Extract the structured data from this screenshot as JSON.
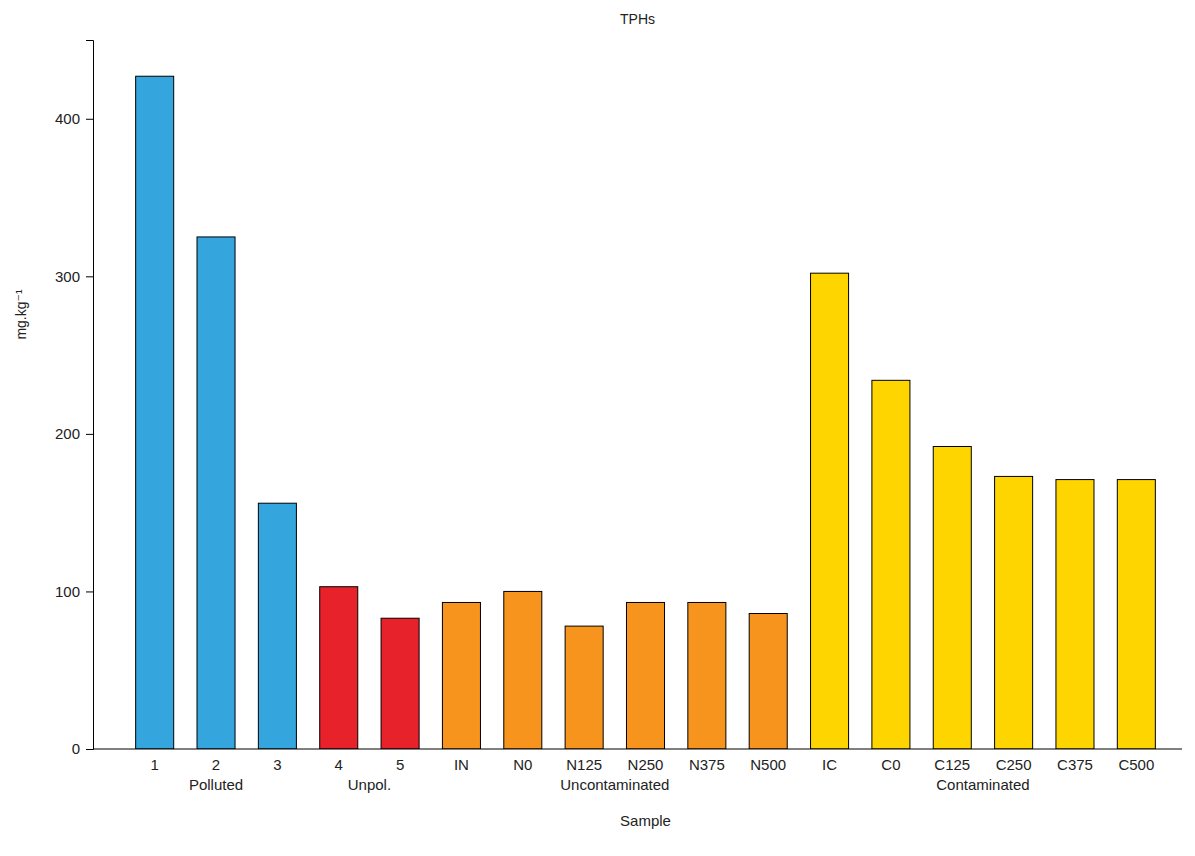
{
  "chart_data": {
    "type": "bar",
    "title": "TPHs",
    "x_label": "Sample",
    "y_label": "mg.kg⁻¹",
    "categories": [
      "1",
      "2",
      "3",
      "4",
      "5",
      "IN",
      "N0",
      "N125",
      "N250",
      "N375",
      "N500",
      "IC",
      "C0",
      "C125",
      "C250",
      "C375",
      "C500"
    ],
    "values": [
      427,
      325,
      156,
      103,
      83,
      93,
      100,
      78,
      93,
      93,
      86,
      302,
      234,
      192,
      173,
      171,
      171
    ],
    "colors": [
      "#35a5dd",
      "#35a5dd",
      "#35a5dd",
      "#e8222a",
      "#e8222a",
      "#f7941d",
      "#f7941d",
      "#f7941d",
      "#f7941d",
      "#f7941d",
      "#f7941d",
      "#ffd500",
      "#ffd500",
      "#ffd500",
      "#ffd500",
      "#ffd500",
      "#ffd500"
    ],
    "groups": [
      {
        "label": "Polluted",
        "count": 3
      },
      {
        "label": "Unpol.",
        "count": 2
      },
      {
        "label": "Uncontaminated",
        "count": 6
      },
      {
        "label": "Contaminated",
        "count": 6
      }
    ],
    "ylim": [
      0,
      450
    ],
    "yticks": [
      0,
      100,
      200,
      300,
      400
    ],
    "grid": false
  }
}
